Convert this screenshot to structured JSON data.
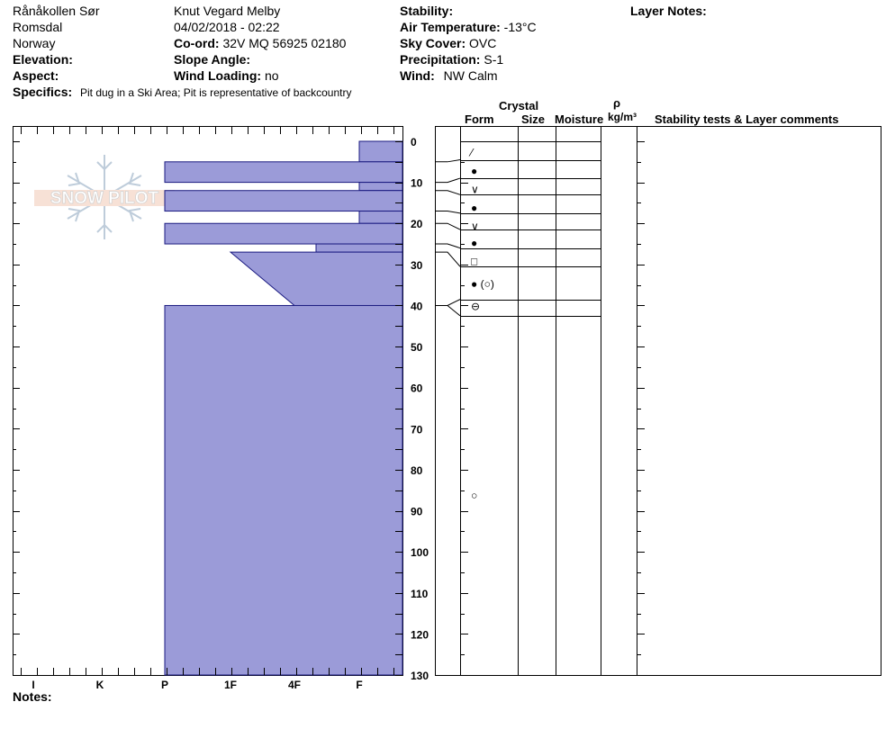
{
  "header": {
    "location": "Rånåkollen Sør",
    "region": "Romsdal",
    "country": "Norway",
    "elevation_label": "Elevation:",
    "aspect_label": "Aspect:",
    "specifics_label": "Specifics:",
    "specifics_value": "Pit dug in a Ski Area; Pit is representative of backcountry",
    "observer": "Knut Vegard Melby",
    "datetime": "04/02/2018 - 02:22",
    "coord_label": "Co-ord:",
    "coord_value": "32V MQ 56925 02180",
    "slope_label": "Slope Angle:",
    "wind_loading_label": "Wind Loading:",
    "wind_loading_value": "no",
    "stability_label": "Stability:",
    "air_temp_label": "Air Temperature:",
    "air_temp_value": "-13°C",
    "sky_label": "Sky Cover:",
    "sky_value": "OVC",
    "precip_label": "Precipitation:",
    "precip_value": "S-1",
    "wind_label": "Wind:",
    "wind_value": "NW Calm",
    "layer_notes_label": "Layer Notes:"
  },
  "logo": {
    "text": "SNOW PILOT"
  },
  "columns": {
    "crystal": "Crystal",
    "form": "Form",
    "size": "Size",
    "moisture": "Moisture",
    "rho": "ρ",
    "density_unit": "kg/m³",
    "stability": "Stability tests & Layer comments"
  },
  "hardness_axis": [
    "I",
    "K",
    "P",
    "1F",
    "4F",
    "F"
  ],
  "depth_axis": [
    "0",
    "10",
    "20",
    "30",
    "40",
    "50",
    "60",
    "70",
    "80",
    "90",
    "100",
    "110",
    "120",
    "130"
  ],
  "notes_label": "Notes:",
  "colors": {
    "layer_fill": "#9b9bd8",
    "layer_stroke": "#1a1a80"
  },
  "chart_data": {
    "type": "snow-profile",
    "depth_range": [
      0,
      130
    ],
    "hardness_scale": [
      "I",
      "K",
      "P",
      "1F",
      "4F",
      "F"
    ],
    "hardness_layers": [
      {
        "top": 0,
        "bottom": 5,
        "hardness": "F"
      },
      {
        "top": 5,
        "bottom": 10,
        "hardness": "P"
      },
      {
        "top": 10,
        "bottom": 12,
        "hardness": "F"
      },
      {
        "top": 12,
        "bottom": 17,
        "hardness": "P"
      },
      {
        "top": 17,
        "bottom": 20,
        "hardness": "F"
      },
      {
        "top": 20,
        "bottom": 25,
        "hardness": "P"
      },
      {
        "top": 25,
        "bottom": 27,
        "hardness": "4F-F"
      },
      {
        "top": 27,
        "bottom": 40,
        "hardness": "1F to F"
      },
      {
        "top": 40,
        "bottom": 130,
        "hardness": "P"
      }
    ],
    "crystal_forms": [
      {
        "depth": 2.5,
        "symbol": "⁄"
      },
      {
        "depth": 7,
        "symbol": "●"
      },
      {
        "depth": 11.5,
        "symbol": "∨"
      },
      {
        "depth": 16,
        "symbol": "●"
      },
      {
        "depth": 20.5,
        "symbol": "∨"
      },
      {
        "depth": 24.5,
        "symbol": "●"
      },
      {
        "depth": 29,
        "symbol": "□"
      },
      {
        "depth": 34.5,
        "symbol": "● (○)"
      },
      {
        "depth": 40,
        "symbol": "⊖"
      },
      {
        "depth": 86,
        "symbol": "○"
      }
    ]
  }
}
